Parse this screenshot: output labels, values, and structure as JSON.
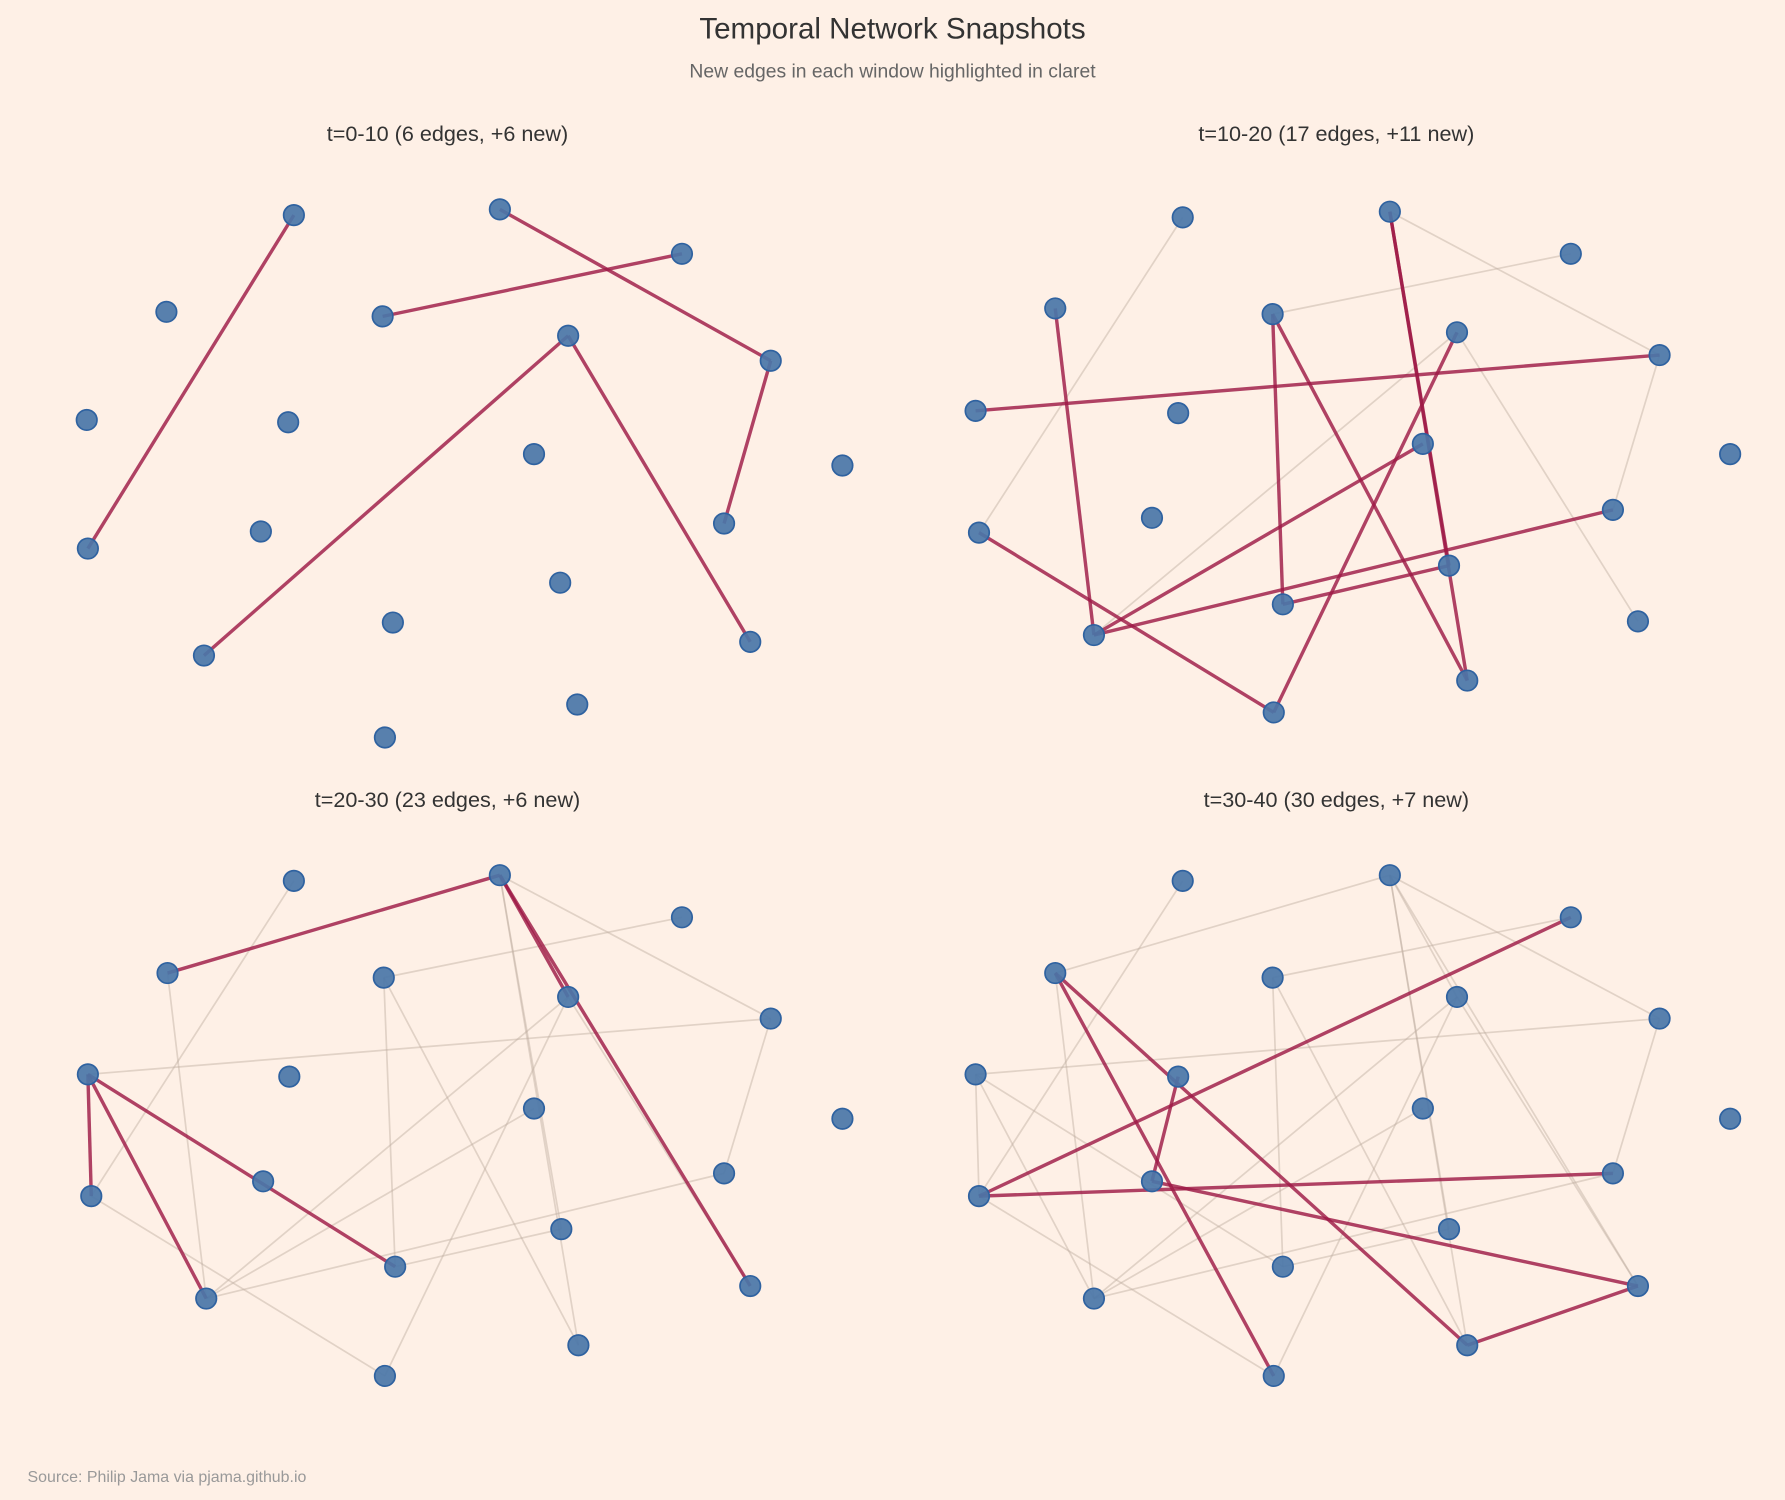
{
  "title": "Temporal Network Snapshots",
  "subtitle": "New edges in each window highlighted in claret",
  "source": "Source: Philip Jama via pjama.github.io",
  "colors": {
    "background": "#fef0e6",
    "node": "#4a76a8",
    "node_edge": "#2f62a0",
    "new_edge": "#9e1a46",
    "old_edge": "#bfae9f"
  },
  "chart_data": {
    "type": "network",
    "node_count": 20,
    "panels": [
      {
        "title": "t=0-10 (6 edges, +6 new)",
        "edges_total": 6,
        "new_count": 6,
        "new_edges": [
          [
            0,
            13
          ],
          [
            1,
            6
          ],
          [
            4,
            2
          ],
          [
            5,
            16
          ],
          [
            5,
            17
          ],
          [
            6,
            11
          ]
        ]
      },
      {
        "title": "t=10-20 (17 edges, +11 new)",
        "edges_total": 17,
        "new_count": 11,
        "new_edges": [
          [
            3,
            16
          ],
          [
            7,
            6
          ],
          [
            4,
            15
          ],
          [
            4,
            18
          ],
          [
            1,
            14
          ],
          [
            1,
            18
          ],
          [
            5,
            19
          ],
          [
            9,
            16
          ],
          [
            16,
            11
          ],
          [
            15,
            14
          ],
          [
            13,
            19
          ]
        ]
      },
      {
        "title": "t=20-30 (23 edges, +6 new)",
        "edges_total": 23,
        "new_count": 6,
        "new_edges": [
          [
            3,
            1
          ],
          [
            1,
            5
          ],
          [
            1,
            17
          ],
          [
            7,
            13
          ],
          [
            7,
            16
          ],
          [
            7,
            15
          ]
        ]
      },
      {
        "title": "t=30-40 (30 edges, +7 new)",
        "edges_total": 30,
        "new_count": 7,
        "new_edges": [
          [
            3,
            19
          ],
          [
            3,
            18
          ],
          [
            8,
            12
          ],
          [
            12,
            17
          ],
          [
            2,
            13
          ],
          [
            13,
            11
          ],
          [
            18,
            17
          ]
        ]
      }
    ]
  }
}
